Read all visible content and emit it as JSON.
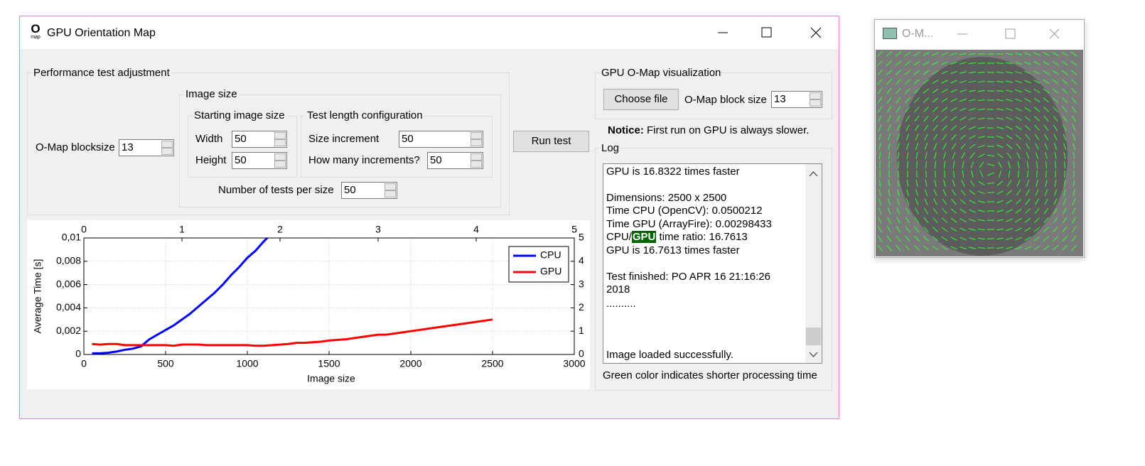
{
  "window": {
    "title": "GPU Orientation Map",
    "icon_letter": "O",
    "icon_caption": "map"
  },
  "performance": {
    "title": "Performance test adjustment",
    "omap_blocksize_label": "O-Map blocksize",
    "omap_blocksize": 13,
    "image_size_title": "Image size",
    "starting_title": "Starting image size",
    "width_label": "Width",
    "width": 50,
    "height_label": "Height",
    "height": 50,
    "test_length_title": "Test length configuration",
    "size_increment_label": "Size increment",
    "size_increment": 50,
    "increments_label": "How many increments?",
    "increments": 50,
    "tests_per_size_label": "Number of tests per size",
    "tests_per_size": 50
  },
  "run_button": "Run test",
  "visualization": {
    "title": "GPU O-Map visualization",
    "choose_file": "Choose file",
    "block_size_label": "O-Map block size",
    "block_size": 13
  },
  "notice": {
    "bold": "Notice:",
    "text": " First run on GPU is always slower."
  },
  "log": {
    "title": "Log",
    "line_1": "GPU is 16.8322 times faster",
    "dimensions": "Dimensions: 2500 x 2500",
    "time_cpu": "Time CPU (OpenCV): 0.0500212",
    "time_gpu": "Time GPU (ArrayFire): 0.00298433",
    "ratio_prefix": "CPU/",
    "ratio_highlight": "GPU",
    "ratio_suffix": " time ratio: 16.7613",
    "faster": "GPU is 16.7613 times faster",
    "finished": "Test finished: PO APR 16 21:16:26 2018",
    "dots": "..........",
    "loaded": "Image loaded successfully."
  },
  "footer": "Green color indicates shorter processing time",
  "side_window": {
    "title": "O-M..."
  },
  "chart_data": {
    "type": "line",
    "xlabel": "Image size",
    "ylabel": "Average Time [s]",
    "x": [
      50,
      100,
      150,
      200,
      250,
      300,
      350,
      400,
      450,
      500,
      550,
      600,
      650,
      700,
      750,
      800,
      850,
      900,
      950,
      1000,
      1050,
      1100,
      1150,
      1200,
      1250,
      1300,
      1350,
      1400,
      1450,
      1500,
      1550,
      1600,
      1650,
      1700,
      1750,
      1800,
      1850,
      1900,
      1950,
      2000,
      2050,
      2100,
      2150,
      2200,
      2250,
      2300,
      2350,
      2400,
      2450,
      2500
    ],
    "series": [
      {
        "name": "CPU",
        "color": "#0000ff",
        "values": [
          0.0001,
          0.0001,
          0.00015,
          0.00025,
          0.0004,
          0.0005,
          0.0007,
          0.0013,
          0.0017,
          0.0021,
          0.0025,
          0.003,
          0.0035,
          0.0041,
          0.0047,
          0.0053,
          0.006,
          0.0068,
          0.0075,
          0.0083,
          0.0089,
          0.0097,
          0.0104,
          null,
          null,
          null,
          null,
          null,
          null,
          null,
          null,
          null,
          null,
          null,
          null,
          null,
          null,
          null,
          null,
          null,
          null,
          null,
          null,
          null,
          null,
          null,
          null,
          null,
          null,
          null
        ]
      },
      {
        "name": "GPU",
        "color": "#ff0000",
        "values": [
          0.0009,
          0.00085,
          0.0009,
          0.0009,
          0.0008,
          0.0008,
          0.0008,
          0.0008,
          0.0008,
          0.0008,
          0.00075,
          0.00085,
          0.00085,
          0.00085,
          0.0008,
          0.0008,
          0.0008,
          0.0008,
          0.0008,
          0.0008,
          0.00075,
          0.00075,
          0.0008,
          0.00085,
          0.0009,
          0.001,
          0.001,
          0.00105,
          0.0011,
          0.0012,
          0.00125,
          0.0013,
          0.0014,
          0.0015,
          0.0016,
          0.0017,
          0.0017,
          0.0018,
          0.0019,
          0.002,
          0.0021,
          0.0022,
          0.0023,
          0.0024,
          0.0025,
          0.0026,
          0.0027,
          0.0028,
          0.0029,
          0.003
        ]
      }
    ],
    "xlim": [
      0,
      3000
    ],
    "xticks": [
      0,
      500,
      1000,
      1500,
      2000,
      2500,
      3000
    ],
    "ylim": [
      0,
      0.01
    ],
    "yticks": [
      0,
      {
        "value": 0.002,
        "label": "0,002"
      },
      {
        "value": 0.004,
        "label": "0,004"
      },
      {
        "value": 0.006,
        "label": "0,006"
      },
      {
        "value": 0.008,
        "label": "0,008"
      },
      {
        "value": 0.01,
        "label": "0,01"
      }
    ],
    "x2lim": [
      0,
      5
    ],
    "x2ticks": [
      0,
      1,
      2,
      3,
      4,
      5
    ],
    "y2lim": [
      0,
      5
    ],
    "y2ticks": [
      0,
      1,
      2,
      3,
      4,
      5
    ],
    "grid": true,
    "legend": "upper right"
  }
}
